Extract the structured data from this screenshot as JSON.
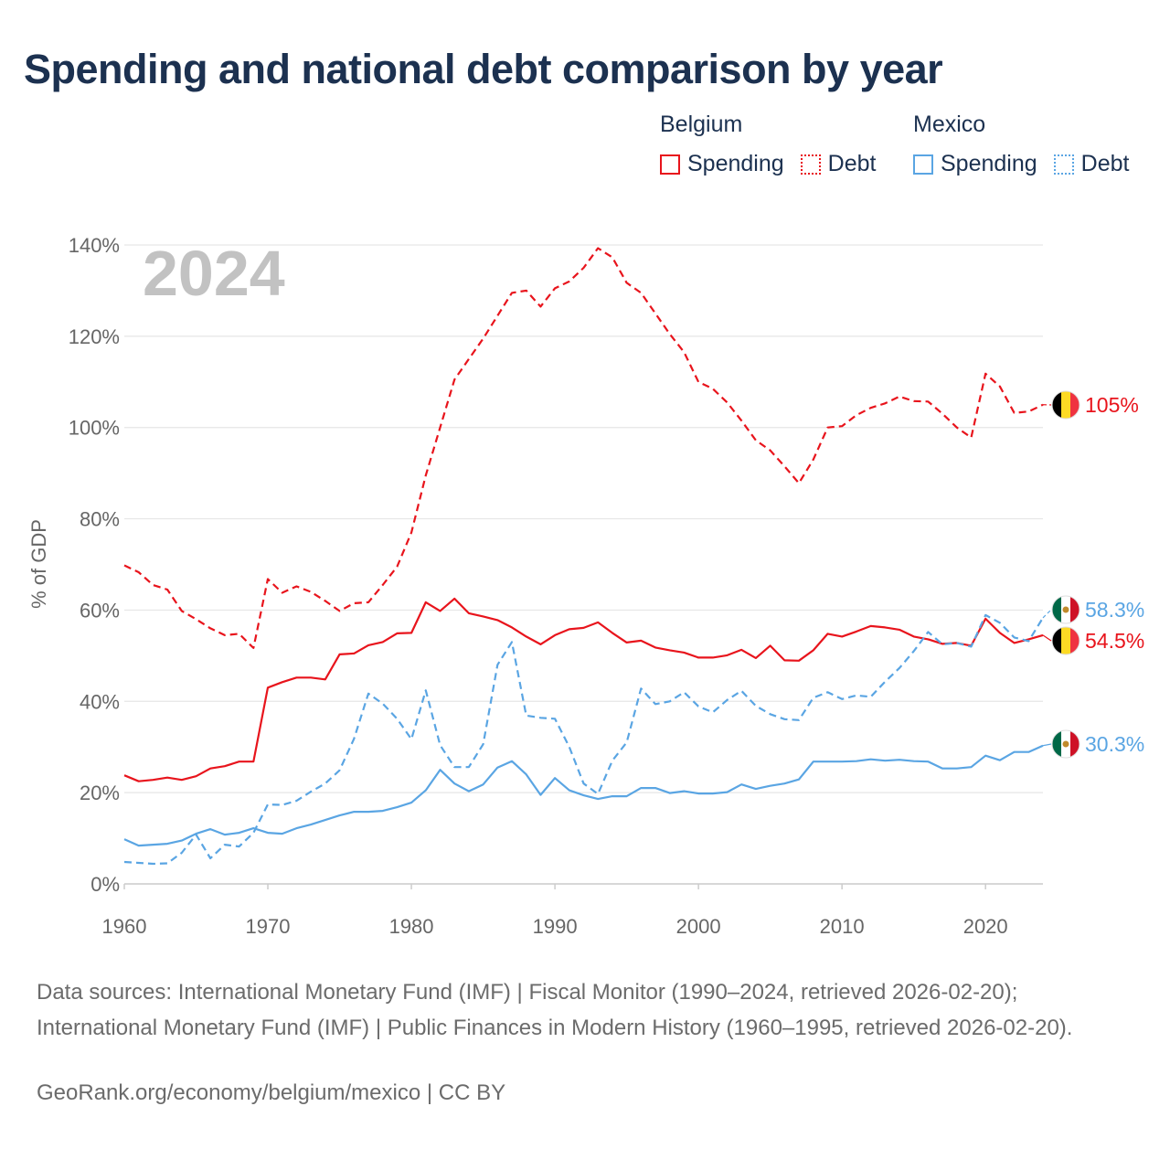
{
  "title": "Spending and national debt comparison by year",
  "legend": {
    "groups": [
      {
        "country": "Belgium",
        "items": [
          {
            "label": "Spending",
            "style": "solid",
            "color": "#e8141c"
          },
          {
            "label": "Debt",
            "style": "dotted",
            "color": "#e8141c"
          }
        ]
      },
      {
        "country": "Mexico",
        "items": [
          {
            "label": "Spending",
            "style": "solid",
            "color": "#5aa5e3"
          },
          {
            "label": "Debt",
            "style": "dotted",
            "color": "#5aa5e3"
          }
        ]
      }
    ]
  },
  "chart_data": {
    "type": "line",
    "year_label": "2024",
    "ylabel": "% of GDP",
    "xlim": [
      1960,
      2024
    ],
    "ylim": [
      0,
      140
    ],
    "xticks": [
      1960,
      1970,
      1980,
      1990,
      2000,
      2010,
      2020
    ],
    "yticks": [
      0,
      20,
      40,
      60,
      80,
      100,
      120,
      140
    ],
    "ytick_labels": [
      "0%",
      "20%",
      "40%",
      "60%",
      "80%",
      "100%",
      "120%",
      "140%"
    ],
    "grid": true,
    "series": [
      {
        "name": "Belgium Debt",
        "country": "Belgium",
        "color": "#e8141c",
        "dash": true,
        "flag": "belgium",
        "end_label": "105%",
        "x": [
          1960,
          1961,
          1962,
          1963,
          1964,
          1965,
          1966,
          1967,
          1968,
          1969,
          1970,
          1971,
          1972,
          1973,
          1974,
          1975,
          1976,
          1977,
          1978,
          1979,
          1980,
          1981,
          1982,
          1983,
          1984,
          1985,
          1986,
          1987,
          1988,
          1989,
          1990,
          1991,
          1992,
          1993,
          1994,
          1995,
          1996,
          1997,
          1998,
          1999,
          2000,
          2001,
          2002,
          2003,
          2004,
          2005,
          2006,
          2007,
          2008,
          2009,
          2010,
          2011,
          2012,
          2013,
          2014,
          2015,
          2016,
          2017,
          2018,
          2019,
          2020,
          2021,
          2022,
          2023,
          2024
        ],
        "y": [
          69.8,
          68.3,
          65.5,
          64.5,
          59.8,
          58.0,
          56.0,
          54.5,
          54.8,
          51.7,
          66.8,
          63.8,
          65.2,
          64.0,
          62.0,
          59.8,
          61.5,
          61.7,
          65.5,
          69.5,
          77.0,
          89.5,
          100.0,
          110.5,
          115.0,
          119.5,
          124.5,
          129.5,
          130.0,
          126.5,
          130.5,
          132.0,
          135.0,
          139.3,
          137.3,
          131.7,
          129.5,
          125.0,
          120.5,
          116.5,
          110.0,
          108.5,
          105.5,
          101.5,
          97.2,
          95.0,
          91.5,
          87.8,
          93.0,
          100.0,
          100.3,
          102.7,
          104.3,
          105.3,
          106.8,
          105.8,
          105.7,
          103.0,
          100.0,
          97.8,
          111.8,
          109.0,
          103.2,
          103.5,
          105.0
        ]
      },
      {
        "name": "Belgium Spending",
        "country": "Belgium",
        "color": "#e8141c",
        "dash": false,
        "flag": "belgium",
        "end_label": "54.5%",
        "x": [
          1960,
          1961,
          1962,
          1963,
          1964,
          1965,
          1966,
          1967,
          1968,
          1969,
          1970,
          1971,
          1972,
          1973,
          1974,
          1975,
          1976,
          1977,
          1978,
          1979,
          1980,
          1981,
          1982,
          1983,
          1984,
          1985,
          1986,
          1987,
          1988,
          1989,
          1990,
          1991,
          1992,
          1993,
          1994,
          1995,
          1996,
          1997,
          1998,
          1999,
          2000,
          2001,
          2002,
          2003,
          2004,
          2005,
          2006,
          2007,
          2008,
          2009,
          2010,
          2011,
          2012,
          2013,
          2014,
          2015,
          2016,
          2017,
          2018,
          2019,
          2020,
          2021,
          2022,
          2023,
          2024
        ],
        "y": [
          23.8,
          22.5,
          22.8,
          23.3,
          22.8,
          23.6,
          25.3,
          25.8,
          26.8,
          26.8,
          43.0,
          44.2,
          45.2,
          45.2,
          44.8,
          50.3,
          50.5,
          52.3,
          53.0,
          54.9,
          55.0,
          61.7,
          59.8,
          62.5,
          59.3,
          58.6,
          57.8,
          56.2,
          54.2,
          52.5,
          54.5,
          55.8,
          56.1,
          57.3,
          55.0,
          52.9,
          53.3,
          51.8,
          51.2,
          50.7,
          49.6,
          49.6,
          50.1,
          51.3,
          49.5,
          52.2,
          49.0,
          48.9,
          51.2,
          54.8,
          54.2,
          55.3,
          56.5,
          56.2,
          55.7,
          54.2,
          53.6,
          52.6,
          52.8,
          52.2,
          58.1,
          55.0,
          52.8,
          53.6,
          54.5
        ]
      },
      {
        "name": "Mexico Debt",
        "country": "Mexico",
        "color": "#5aa5e3",
        "dash": true,
        "flag": "mexico",
        "end_label": "58.3%",
        "x": [
          1960,
          1961,
          1962,
          1963,
          1964,
          1965,
          1966,
          1967,
          1968,
          1969,
          1970,
          1971,
          1972,
          1973,
          1974,
          1975,
          1976,
          1977,
          1978,
          1979,
          1980,
          1981,
          1982,
          1983,
          1984,
          1985,
          1986,
          1987,
          1988,
          1989,
          1990,
          1991,
          1992,
          1993,
          1994,
          1995,
          1996,
          1997,
          1998,
          1999,
          2000,
          2001,
          2002,
          2003,
          2004,
          2005,
          2006,
          2007,
          2008,
          2009,
          2010,
          2011,
          2012,
          2013,
          2014,
          2015,
          2016,
          2017,
          2018,
          2019,
          2020,
          2021,
          2022,
          2023,
          2024
        ],
        "y": [
          4.8,
          4.6,
          4.4,
          4.5,
          6.8,
          10.8,
          5.6,
          8.6,
          8.2,
          11.2,
          17.4,
          17.3,
          18.2,
          20.2,
          22.0,
          24.9,
          31.8,
          41.7,
          39.5,
          36.2,
          31.7,
          42.4,
          30.4,
          25.6,
          25.6,
          30.6,
          48.0,
          53.0,
          36.9,
          36.4,
          36.2,
          30.0,
          22.0,
          19.7,
          27.0,
          31.0,
          42.8,
          39.4,
          40.0,
          42.0,
          38.9,
          37.6,
          40.3,
          42.3,
          39.0,
          37.2,
          36.1,
          35.9,
          40.8,
          42.0,
          40.5,
          41.3,
          41.0,
          44.3,
          47.3,
          51.0,
          55.2,
          52.5,
          52.8,
          52.0,
          58.9,
          57.2,
          54.0,
          53.2,
          58.3
        ]
      },
      {
        "name": "Mexico Spending",
        "country": "Mexico",
        "color": "#5aa5e3",
        "dash": false,
        "flag": "mexico",
        "end_label": "30.3%",
        "x": [
          1960,
          1961,
          1962,
          1963,
          1964,
          1965,
          1966,
          1967,
          1968,
          1969,
          1970,
          1971,
          1972,
          1973,
          1974,
          1975,
          1976,
          1977,
          1978,
          1979,
          1980,
          1981,
          1982,
          1983,
          1984,
          1985,
          1986,
          1987,
          1988,
          1989,
          1990,
          1991,
          1992,
          1993,
          1994,
          1995,
          1996,
          1997,
          1998,
          1999,
          2000,
          2001,
          2002,
          2003,
          2004,
          2005,
          2006,
          2007,
          2008,
          2009,
          2010,
          2011,
          2012,
          2013,
          2014,
          2015,
          2016,
          2017,
          2018,
          2019,
          2020,
          2021,
          2022,
          2023,
          2024
        ],
        "y": [
          9.8,
          8.4,
          8.6,
          8.8,
          9.5,
          11.0,
          12.0,
          10.8,
          11.2,
          12.2,
          11.2,
          11.0,
          12.2,
          13.0,
          14.0,
          15.0,
          15.8,
          15.8,
          16.0,
          16.8,
          17.8,
          20.5,
          25.0,
          22.0,
          20.3,
          21.8,
          25.5,
          26.9,
          24.0,
          19.5,
          23.2,
          20.5,
          19.4,
          18.6,
          19.2,
          19.2,
          21.0,
          21.0,
          19.9,
          20.3,
          19.8,
          19.8,
          20.1,
          21.8,
          20.8,
          21.5,
          22.0,
          22.9,
          26.8,
          26.8,
          26.8,
          26.9,
          27.3,
          27.0,
          27.2,
          26.9,
          26.8,
          25.3,
          25.3,
          25.6,
          28.1,
          27.1,
          28.9,
          28.9,
          30.3
        ]
      }
    ]
  },
  "sources": "Data sources: International Monetary Fund (IMF) | Fiscal Monitor (1990–2024, retrieved 2026-02-20); International Monetary Fund (IMF) | Public Finances in Modern History (1960–1995, retrieved 2026-02-20).",
  "credit": "GeoRank.org/economy/belgium/mexico | CC BY"
}
